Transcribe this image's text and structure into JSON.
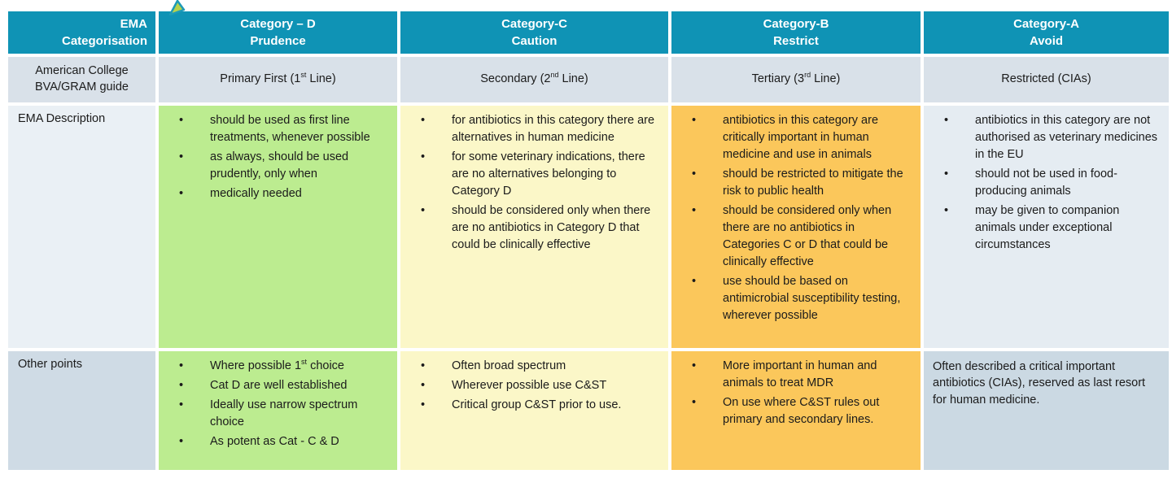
{
  "icon": {
    "name": "pointer-cursor"
  },
  "colors": {
    "header_teal": "#0F93B5",
    "guide_row_bg": "#D9E1E9",
    "label_light_bg": "#EAF0F5",
    "label_dark_bg": "#CFDBE5",
    "category_d_green": "#BCEC90",
    "category_c_yellow": "#FBF7C8",
    "category_b_orange": "#FBC75B",
    "category_a_light": "#E5ECF2",
    "category_a_dark": "#CBD9E3"
  },
  "table": {
    "header": {
      "categorisation": {
        "line1": "EMA",
        "line2": "Categorisation"
      },
      "categories": [
        {
          "line1": "Category – D",
          "line2": "Prudence"
        },
        {
          "line1": "Category-C",
          "line2": "Caution"
        },
        {
          "line1": "Category-B",
          "line2": "Restrict"
        },
        {
          "line1": "Category-A",
          "line2": "Avoid"
        }
      ]
    },
    "guide_row": {
      "label_line1": "American College",
      "label_line2": "BVA/GRAM guide",
      "cells": [
        {
          "pre": "Primary First (1",
          "sup": "st",
          "post": " Line)"
        },
        {
          "pre": "Secondary (2",
          "sup": "nd",
          "post": " Line)"
        },
        {
          "pre": "Tertiary (3",
          "sup": "rd",
          "post": " Line)"
        },
        {
          "pre": "Restricted (CIAs)"
        }
      ]
    },
    "description_row": {
      "label": "EMA Description",
      "category_d": [
        "should be used as first line treatments, whenever possible",
        "as always, should be used prudently, only when",
        "medically needed"
      ],
      "category_c": [
        "for antibiotics in this category there are alternatives in human medicine",
        "for some veterinary indications, there are no alternatives belonging to Category D",
        "should be considered only when there are no antibiotics in Category D that could be clinically effective"
      ],
      "category_b": [
        "antibiotics in this category are critically important in human medicine and use in animals",
        "should be restricted to mitigate the risk to public health",
        "should be considered only when there are no antibiotics in Categories C or D that could be clinically effective",
        "use should be based on antimicrobial susceptibility testing, wherever possible"
      ],
      "category_a": [
        "antibiotics in this category are not authorised as veterinary medicines in the EU",
        "should not be used in food-producing animals",
        "may be given to companion animals under exceptional circumstances"
      ]
    },
    "other_row": {
      "label": "Other points",
      "category_d": [
        {
          "pre": "Where possible 1",
          "sup": "st",
          "post": " choice"
        },
        "Cat D are well established",
        "Ideally use narrow spectrum choice",
        "As potent as Cat - C & D"
      ],
      "category_c": [
        "Often broad spectrum",
        "Wherever possible use C&ST",
        "Critical group C&ST prior to use."
      ],
      "category_b": [
        "More important in human and animals to treat MDR",
        "On use where C&ST rules out primary and secondary lines."
      ],
      "category_a_text": "Often described a critical important antibiotics (CIAs), reserved as last resort for human medicine."
    }
  }
}
